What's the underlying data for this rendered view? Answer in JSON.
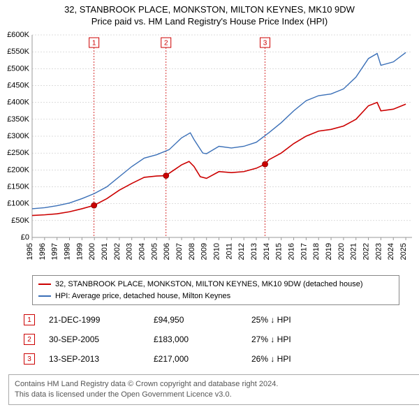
{
  "title": {
    "line1": "32, STANBROOK PLACE, MONKSTON, MILTON KEYNES, MK10 9DW",
    "line2": "Price paid vs. HM Land Registry's House Price Index (HPI)"
  },
  "chart": {
    "type": "line",
    "background_color": "#ffffff",
    "grid_color": "#bbbbbb",
    "x": {
      "min": 1995,
      "max": 2025.5,
      "ticks": [
        1995,
        1996,
        1997,
        1998,
        1999,
        2000,
        2001,
        2002,
        2003,
        2004,
        2005,
        2006,
        2007,
        2008,
        2009,
        2010,
        2011,
        2012,
        2013,
        2014,
        2015,
        2016,
        2017,
        2018,
        2019,
        2020,
        2021,
        2022,
        2023,
        2024,
        2025
      ],
      "tick_labels": [
        "1995",
        "1996",
        "1997",
        "1998",
        "1999",
        "2000",
        "2001",
        "2002",
        "2003",
        "2004",
        "2005",
        "2006",
        "2007",
        "2008",
        "2009",
        "2010",
        "2011",
        "2012",
        "2013",
        "2014",
        "2015",
        "2016",
        "2017",
        "2018",
        "2019",
        "2020",
        "2021",
        "2022",
        "2023",
        "2024",
        "2025"
      ],
      "label_fontsize": 11,
      "rotation": -90
    },
    "y": {
      "min": 0,
      "max": 600000,
      "ticks": [
        0,
        50000,
        100000,
        150000,
        200000,
        250000,
        300000,
        350000,
        400000,
        450000,
        500000,
        550000,
        600000
      ],
      "tick_labels": [
        "£0",
        "£50K",
        "£100K",
        "£150K",
        "£200K",
        "£250K",
        "£300K",
        "£350K",
        "£400K",
        "£450K",
        "£500K",
        "£550K",
        "£600K"
      ],
      "label_fontsize": 11
    },
    "series": [
      {
        "name": "price_paid",
        "color": "#cc0000",
        "line_width": 1.6,
        "points": [
          [
            1995,
            65000
          ],
          [
            1996,
            67000
          ],
          [
            1997,
            70000
          ],
          [
            1998,
            76000
          ],
          [
            1999,
            85000
          ],
          [
            1999.97,
            94950
          ],
          [
            2001,
            115000
          ],
          [
            2002,
            140000
          ],
          [
            2003,
            160000
          ],
          [
            2004,
            178000
          ],
          [
            2005,
            182000
          ],
          [
            2005.75,
            183000
          ],
          [
            2006,
            190000
          ],
          [
            2007,
            215000
          ],
          [
            2007.6,
            225000
          ],
          [
            2008,
            210000
          ],
          [
            2008.5,
            180000
          ],
          [
            2009,
            175000
          ],
          [
            2010,
            195000
          ],
          [
            2011,
            192000
          ],
          [
            2012,
            195000
          ],
          [
            2013,
            205000
          ],
          [
            2013.7,
            217000
          ],
          [
            2014,
            230000
          ],
          [
            2015,
            250000
          ],
          [
            2016,
            278000
          ],
          [
            2017,
            300000
          ],
          [
            2018,
            315000
          ],
          [
            2019,
            320000
          ],
          [
            2020,
            330000
          ],
          [
            2021,
            350000
          ],
          [
            2022,
            390000
          ],
          [
            2022.7,
            400000
          ],
          [
            2023,
            375000
          ],
          [
            2024,
            380000
          ],
          [
            2025,
            395000
          ]
        ]
      },
      {
        "name": "hpi",
        "color": "#3a6fb7",
        "line_width": 1.4,
        "points": [
          [
            1995,
            85000
          ],
          [
            1996,
            88000
          ],
          [
            1997,
            94000
          ],
          [
            1998,
            102000
          ],
          [
            1999,
            115000
          ],
          [
            2000,
            130000
          ],
          [
            2001,
            150000
          ],
          [
            2002,
            180000
          ],
          [
            2003,
            210000
          ],
          [
            2004,
            235000
          ],
          [
            2005,
            245000
          ],
          [
            2006,
            260000
          ],
          [
            2007,
            295000
          ],
          [
            2007.7,
            310000
          ],
          [
            2008,
            290000
          ],
          [
            2008.7,
            250000
          ],
          [
            2009,
            248000
          ],
          [
            2010,
            270000
          ],
          [
            2011,
            265000
          ],
          [
            2012,
            270000
          ],
          [
            2013,
            282000
          ],
          [
            2014,
            310000
          ],
          [
            2015,
            340000
          ],
          [
            2016,
            375000
          ],
          [
            2017,
            405000
          ],
          [
            2018,
            420000
          ],
          [
            2019,
            425000
          ],
          [
            2020,
            440000
          ],
          [
            2021,
            475000
          ],
          [
            2022,
            530000
          ],
          [
            2022.7,
            545000
          ],
          [
            2023,
            510000
          ],
          [
            2024,
            520000
          ],
          [
            2025,
            548000
          ]
        ]
      }
    ],
    "sale_markers": [
      {
        "n": "1",
        "year": 1999.97,
        "price": 94950
      },
      {
        "n": "2",
        "year": 2005.75,
        "price": 183000
      },
      {
        "n": "3",
        "year": 2013.7,
        "price": 217000
      }
    ],
    "marker_color": "#cc0000",
    "marker_box_size": 14
  },
  "legend": {
    "items": [
      {
        "color": "#cc0000",
        "label": "32, STANBROOK PLACE, MONKSTON, MILTON KEYNES, MK10 9DW (detached house)"
      },
      {
        "color": "#3a6fb7",
        "label": "HPI: Average price, detached house, Milton Keynes"
      }
    ]
  },
  "sales_table": {
    "rows": [
      {
        "n": "1",
        "date": "21-DEC-1999",
        "price": "£94,950",
        "hpi": "25% ↓ HPI"
      },
      {
        "n": "2",
        "date": "30-SEP-2005",
        "price": "£183,000",
        "hpi": "27% ↓ HPI"
      },
      {
        "n": "3",
        "date": "13-SEP-2013",
        "price": "£217,000",
        "hpi": "26% ↓ HPI"
      }
    ]
  },
  "footer": {
    "line1": "Contains HM Land Registry data © Crown copyright and database right 2024.",
    "line2": "This data is licensed under the Open Government Licence v3.0."
  }
}
